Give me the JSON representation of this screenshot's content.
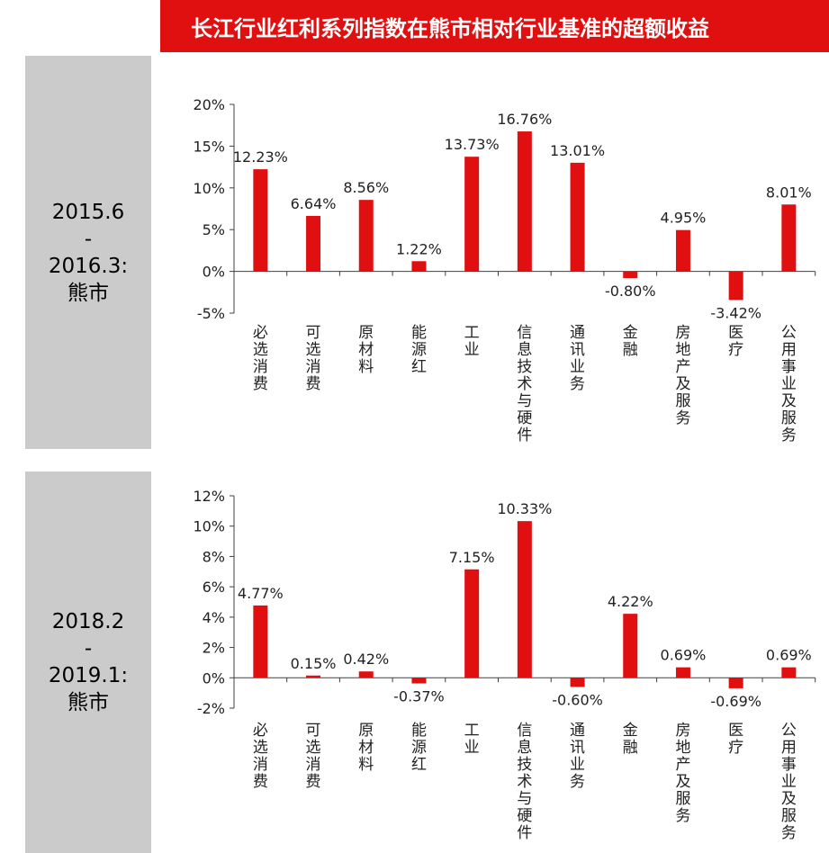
{
  "header": {
    "title": "长江行业红利系列指数在熊市相对行业基准的超额收益"
  },
  "panels": [
    {
      "period_start": "2015.6",
      "separator": "-",
      "period_end": "2016.3:",
      "market": "熊市"
    },
    {
      "period_start": "2018.2",
      "separator": "-",
      "period_end": "2019.1:",
      "market": "熊市"
    }
  ],
  "colors": {
    "bar": "#e01010",
    "title_bg": "#e01010",
    "panel_bg": "#cbcbcb"
  },
  "chart_data": [
    {
      "type": "bar",
      "categories": [
        "必选消费",
        "可选消费",
        "原材料",
        "能源红",
        "工业",
        "信息技术与硬件",
        "通讯业务",
        "金融",
        "房地产及服务",
        "医疗",
        "公用事业及服务"
      ],
      "values": [
        12.23,
        6.64,
        8.56,
        1.22,
        13.73,
        16.76,
        13.01,
        -0.8,
        4.95,
        -3.42,
        8.01
      ],
      "data_labels": [
        "12.23%",
        "6.64%",
        "8.56%",
        "1.22%",
        "13.73%",
        "16.76%",
        "13.01%",
        "-0.80%",
        "4.95%",
        "-3.42%",
        "8.01%"
      ],
      "yticks": [
        "20%",
        "15%",
        "10%",
        "5%",
        "0%",
        "-5%"
      ],
      "ylim": [
        -5,
        20
      ],
      "title": "",
      "xlabel": "",
      "ylabel": "",
      "grid": false
    },
    {
      "type": "bar",
      "categories": [
        "必选消费",
        "可选消费",
        "原材料",
        "能源红",
        "工业",
        "信息技术与硬件",
        "通讯业务",
        "金融",
        "房地产及服务",
        "医疗",
        "公用事业及服务"
      ],
      "values": [
        4.77,
        0.15,
        0.42,
        -0.37,
        7.15,
        10.33,
        -0.6,
        4.22,
        0.69,
        -0.69,
        0.69
      ],
      "data_labels": [
        "4.77%",
        "0.15%",
        "0.42%",
        "-0.37%",
        "7.15%",
        "10.33%",
        "-0.60%",
        "4.22%",
        "0.69%",
        "-0.69%",
        "0.69%"
      ],
      "yticks": [
        "12%",
        "10%",
        "8%",
        "6%",
        "4%",
        "2%",
        "0%",
        "-2%"
      ],
      "ylim": [
        -2,
        12
      ],
      "title": "",
      "xlabel": "",
      "ylabel": "",
      "grid": false
    }
  ]
}
